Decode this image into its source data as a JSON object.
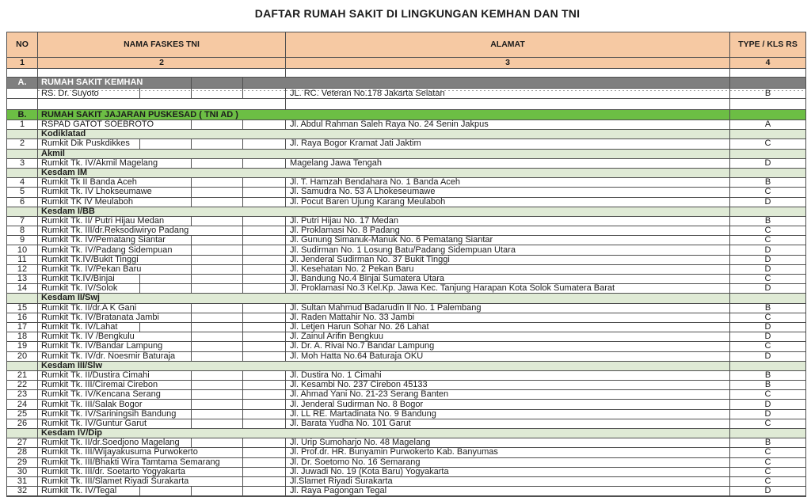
{
  "title": "DAFTAR RUMAH SAKIT DI LINGKUNGAN KEMHAN DAN TNI",
  "colors": {
    "header_bg": "#F6C9A3",
    "section_gray_bg": "#7F7F7F",
    "section_gray_text": "#FFFFFF",
    "section_green_bg": "#6CBE44",
    "subsection_bg": "#DFEAD5",
    "grid": "#4F4F4F",
    "text": "#1C1C1C"
  },
  "table": {
    "headers": {
      "no": "NO",
      "name": "NAMA FASKES TNI",
      "address": "ALAMAT",
      "type": "TYPE / KLS RS"
    },
    "column_numbers": {
      "no": "1",
      "name": "2",
      "address": "3",
      "type": "4"
    },
    "rows": [
      {
        "kind": "gap",
        "h": 11
      },
      {
        "kind": "section",
        "variant": "gray",
        "no": "A.",
        "label": "RUMAH SAKIT KEMHAN",
        "h": 14
      },
      {
        "kind": "data",
        "no": "",
        "name": "RS. Dr. Suyoto",
        "address": "JL. RC. Veteran No.178 Jakarta Selatan",
        "type": "B",
        "h": 13,
        "dotted": true
      },
      {
        "kind": "gap",
        "h": 14
      },
      {
        "kind": "section",
        "variant": "green",
        "no": "B.",
        "label": "RUMAH SAKIT JAJARAN PUSKESAD ( TNI AD )",
        "h": 13
      },
      {
        "kind": "data",
        "no": "1",
        "name": "RSPAD GATOT SOEBROTO",
        "address": "Jl. Abdul Rahman Saleh Raya No. 24 Senin Jakpus",
        "type": "A"
      },
      {
        "kind": "sub",
        "label": "Kodiklatad"
      },
      {
        "kind": "data",
        "no": "2",
        "name": "Rumkit Dik Puskdikkes",
        "address": "Jl. Raya Bogor Kramat Jati Jaktim",
        "type": "C"
      },
      {
        "kind": "sub",
        "label": "Akmil"
      },
      {
        "kind": "data",
        "no": "3",
        "name": "Rumkit Tk. IV/Akmil Magelang",
        "address": "Magelang Jawa Tengah",
        "type": "D"
      },
      {
        "kind": "sub",
        "label": "Kesdam IM"
      },
      {
        "kind": "data",
        "no": "4",
        "name": "Rumkit Tk II Banda Aceh",
        "address": "Jl. T. Hamzah Bendahara No. 1 Banda Aceh",
        "type": "B"
      },
      {
        "kind": "data",
        "no": "5",
        "name": "Rumkit Tk. IV Lhokseumawe",
        "address": "Jl. Samudra No. 53 A Lhokeseumawe",
        "type": "C"
      },
      {
        "kind": "data",
        "no": "6",
        "name": "Rumkit TK IV Meulaboh",
        "address": "Jl. Pocut Baren Ujung Karang Meulaboh",
        "type": "D"
      },
      {
        "kind": "sub",
        "label": "Kesdam I/BB"
      },
      {
        "kind": "data",
        "no": "7",
        "name": "Rumkit Tk. II/ Putri Hijau Medan",
        "address": "Jl. Putri Hijau No. 17 Medan",
        "type": "B"
      },
      {
        "kind": "data",
        "no": "8",
        "name": "Rumkit Tk. III/dr.Reksodiwiryo Padang",
        "address": "Jl. Proklamasi No. 8 Padang",
        "type": "C"
      },
      {
        "kind": "data",
        "no": "9",
        "name": "Rumkit Tk. IV/Pematang Siantar",
        "address": "Jl. Gunung Simanuk-Manuk No. 6 Pematang Siantar",
        "type": "C"
      },
      {
        "kind": "data",
        "no": "10",
        "name": "Rumkit Tk. IV/Padang Sidempuan",
        "address": "Jl. Sudirman No. 1 Losung Batu/Padang Sidempuan Utara",
        "type": "D"
      },
      {
        "kind": "data",
        "no": "11",
        "name": "Rumkit Tk.IV/Bukit Tinggi",
        "address": "Jl. Jenderal Sudirman No. 37 Bukit Tinggi",
        "type": "D"
      },
      {
        "kind": "data",
        "no": "12",
        "name": "Rumkit Tk. IV/Pekan Baru",
        "address": "Jl. Kesehatan No. 2 Pekan Baru",
        "type": "D"
      },
      {
        "kind": "data",
        "no": "13",
        "name": "Rumkit Tk.IV/Binjai",
        "address": "Jl. Bandung No.4 Binjai Sumatera Utara",
        "type": "C"
      },
      {
        "kind": "data",
        "no": "14",
        "name": "Rumkit Tk. IV/Solok",
        "address": "Jl. Proklamasi No.3 Kel.Kp. Jawa Kec. Tanjung Harapan Kota Solok Sumatera Barat",
        "type": "D"
      },
      {
        "kind": "sub",
        "label": "Kesdam II/Swj"
      },
      {
        "kind": "data",
        "no": "15",
        "name": "Rumkit Tk. II/dr.A K Gani",
        "address": "Jl. Sultan Mahmud Badarudin II No. 1 Palembang",
        "type": "B"
      },
      {
        "kind": "data",
        "no": "16",
        "name": "Rumkit Tk. IV/Bratanata Jambi",
        "address": "Jl. Raden Mattahir No. 33 Jambi",
        "type": "C"
      },
      {
        "kind": "data",
        "no": "17",
        "name": "Rumkit Tk. IV/Lahat",
        "address": "Jl. Letjen Harun Sohar No. 26 Lahat",
        "type": "D"
      },
      {
        "kind": "data",
        "no": "18",
        "name": "Rumkit Tk. IV /Bengkulu",
        "address": "Jl. Zainul Arifin Bengkuu",
        "type": "D"
      },
      {
        "kind": "data",
        "no": "19",
        "name": "Rumkit Tk. IV/Bandar Lampung",
        "address": "Jl. Dr. A. Rivai No.7 Bandar Lampung",
        "type": "C"
      },
      {
        "kind": "data",
        "no": "20",
        "name": "Rumkit Tk. IV/dr. Noesmir Baturaja",
        "address": "Jl. Moh Hatta No.64 Baturaja OKU",
        "type": "D"
      },
      {
        "kind": "sub",
        "label": "Kesdam III/Slw"
      },
      {
        "kind": "data",
        "no": "21",
        "name": "Rumkit Tk. II/Dustira Cimahi",
        "address": "Jl. Dustira No. 1 Cimahi",
        "type": "B"
      },
      {
        "kind": "data",
        "no": "22",
        "name": "Rumkit Tk. III/Ciremai Cirebon",
        "address": "Jl. Kesambi No. 237 Cirebon 45133",
        "type": "B"
      },
      {
        "kind": "data",
        "no": "23",
        "name": "Rumkit Tk. IV/Kencana Serang",
        "address": "Jl. Ahmad Yani No. 21-23 Serang Banten",
        "type": "C"
      },
      {
        "kind": "data",
        "no": "24",
        "name": "Rumkit Tk. III/Salak Bogor",
        "address": "Jl. Jenderal Sudirman No. 8 Bogor",
        "type": "D"
      },
      {
        "kind": "data",
        "no": "25",
        "name": "Rumkit Tk. IV/Sariningsih Bandung",
        "address": "Jl. LL RE. Martadinata No. 9 Bandung",
        "type": "D"
      },
      {
        "kind": "data",
        "no": "26",
        "name": "Rumkit Tk. IV/Guntur Garut",
        "address": "Jl. Barata Yudha No. 101 Garut",
        "type": "C"
      },
      {
        "kind": "sub",
        "label": "Kesdam IV/Dip"
      },
      {
        "kind": "data",
        "no": "27",
        "name": "Rumkit Tk. II/dr.Soedjono Magelang",
        "address": "Jl. Urip Sumoharjo No. 48 Magelang",
        "type": "B"
      },
      {
        "kind": "data",
        "no": "28",
        "name": "Rumkit Tk. III/Wijayakusuma Purwokerto",
        "address": "Jl. Prof.dr. HR. Bunyamin Purwokerto Kab. Banyumas",
        "type": "C"
      },
      {
        "kind": "data",
        "no": "29",
        "name": "Rumkit Tk. III/Bhakti Wira Tamtama Semarang",
        "address": "Jl. Dr. Soetomo No. 16 Semarang",
        "type": "C"
      },
      {
        "kind": "data",
        "no": "30",
        "name": "Rumkit Tk. III/dr. Soetarto Yogyakarta",
        "address": "Jl. Juwadi No. 19 (Kota Baru) Yogyakarta",
        "type": "C"
      },
      {
        "kind": "data",
        "no": "31",
        "name": "Rumkit Tk. III/Slamet Riyadi Surakarta",
        "address": "Jl.Slamet Riyadi Surakarta",
        "type": "C"
      },
      {
        "kind": "data",
        "no": "32",
        "name": "Rumkit Tk. IV/Tegal",
        "address": "Jl. Raya Pagongan Tegal",
        "type": "D",
        "h": 12
      }
    ]
  }
}
